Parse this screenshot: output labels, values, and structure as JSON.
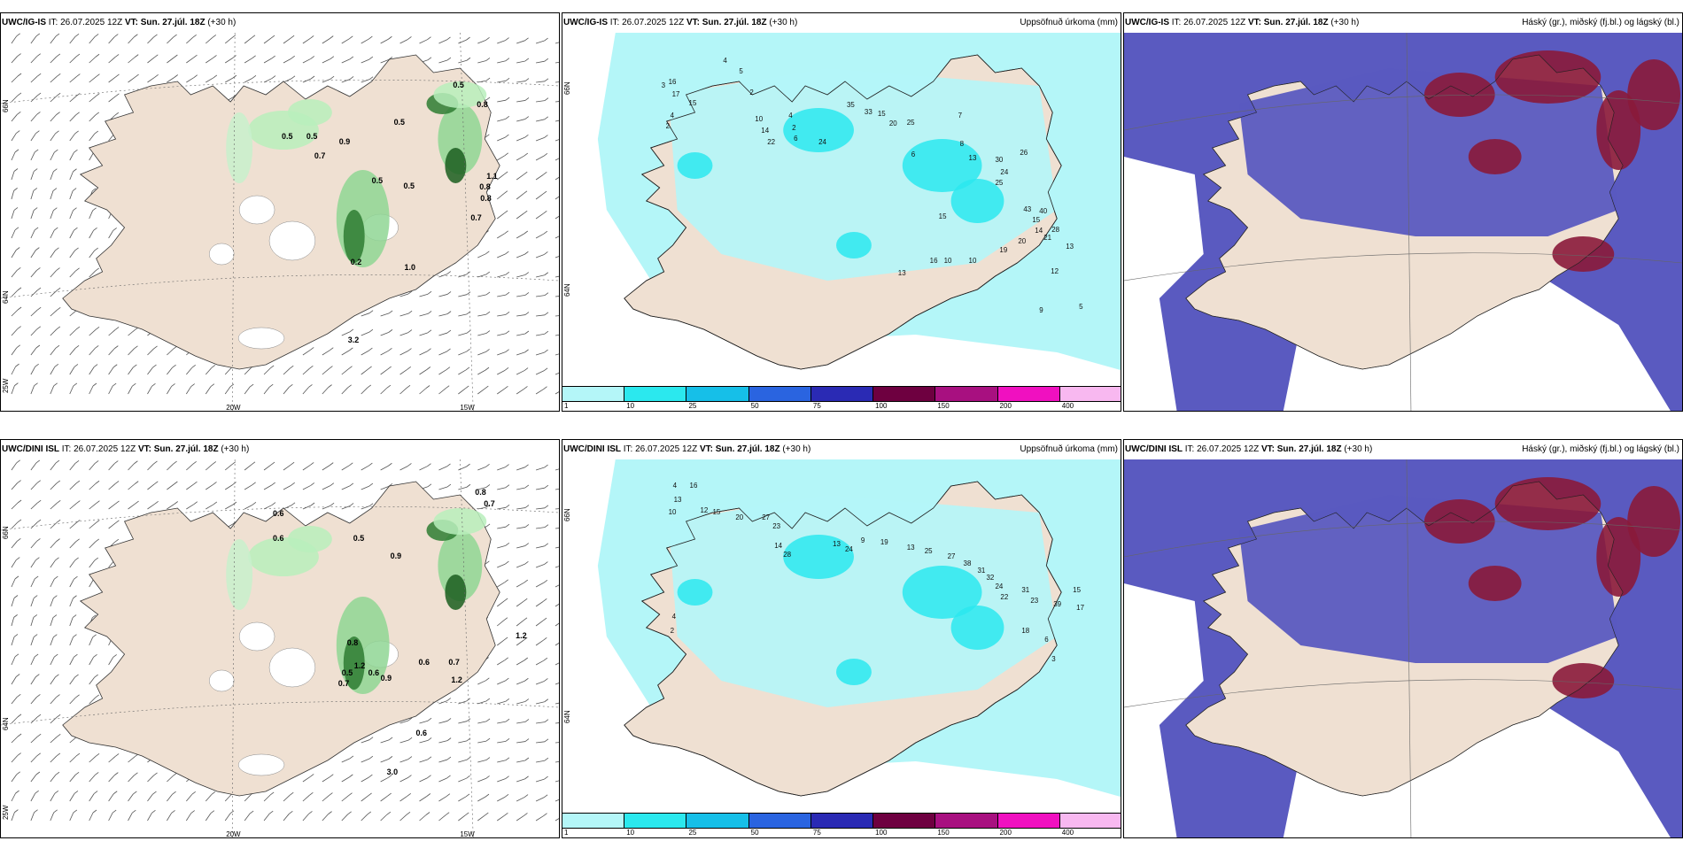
{
  "panels": [
    {
      "model": "UWC/IG-IS",
      "it_label": "IT:",
      "it": "26.07.2025 12Z",
      "vt_label": "VT:",
      "vt": "Sun. 27.júl. 18Z",
      "lead": "(+30 h)",
      "type": "wind",
      "right_title": "",
      "axis": {
        "lat1": "66N",
        "lat2": "64N",
        "lon0": "25W",
        "lon1": "20W",
        "lon2": "15W"
      },
      "values": [
        "0.5",
        "0.8",
        "0.5",
        "0.5",
        "0.5",
        "0.9",
        "0.7",
        "0.5",
        "0.5",
        "1.1",
        "0.8",
        "0.8",
        "0.7",
        "1.0",
        "0.2",
        "3.2"
      ]
    },
    {
      "model": "UWC/IG-IS",
      "it_label": "IT:",
      "it": "26.07.2025 12Z",
      "vt_label": "VT:",
      "vt": "Sun. 27.júl. 18Z",
      "lead": "(+30 h)",
      "type": "precip",
      "right_title": "Uppsöfnuð úrkoma (mm)",
      "axis": {
        "lat1": "66N",
        "lat2": "64N"
      },
      "values": [
        "4",
        "5",
        "3",
        "2",
        "16",
        "17",
        "15",
        "4",
        "2",
        "10",
        "14",
        "4",
        "2",
        "6",
        "22",
        "24",
        "35",
        "33",
        "15",
        "20",
        "25",
        "6",
        "7",
        "8",
        "13",
        "30",
        "24",
        "26",
        "25",
        "43",
        "40",
        "15",
        "14",
        "21",
        "20",
        "28",
        "10",
        "10",
        "13",
        "16",
        "15",
        "19",
        "12",
        "13",
        "9",
        "5"
      ]
    },
    {
      "model": "UWC/IG-IS",
      "it_label": "IT:",
      "it": "26.07.2025 12Z",
      "vt_label": "VT:",
      "vt": "Sun. 27.júl. 18Z",
      "lead": "(+30 h)",
      "type": "cloud",
      "right_title": "Háský (gr.), miðský (fj.bl.) og lágský (bl.)"
    },
    {
      "model": "UWC/DINI ISL",
      "it_label": "IT:",
      "it": "26.07.2025 12Z",
      "vt_label": "VT:",
      "vt": "Sun. 27.júl. 18Z",
      "lead": "(+30 h)",
      "type": "wind",
      "right_title": "",
      "axis": {
        "lat1": "66N",
        "lat2": "64N",
        "lon0": "25W",
        "lon1": "20W",
        "lon2": "15W"
      },
      "values": [
        "0.6",
        "0.8",
        "0.7",
        "0.6",
        "0.5",
        "0.9",
        "0.8",
        "1.2",
        "0.6",
        "0.7",
        "0.6",
        "0.5",
        "0.7",
        "1.2",
        "0.9",
        "1.2",
        "0.6",
        "3.0"
      ]
    },
    {
      "model": "UWC/DINI ISL",
      "it_label": "IT:",
      "it": "26.07.2025 12Z",
      "vt_label": "VT:",
      "vt": "Sun. 27.júl. 18Z",
      "lead": "(+30 h)",
      "type": "precip",
      "right_title": "Uppsöfnuð úrkoma (mm)",
      "axis": {
        "lat1": "66N",
        "lat2": "64N"
      },
      "values": [
        "4",
        "16",
        "13",
        "10",
        "12",
        "15",
        "20",
        "27",
        "23",
        "14",
        "28",
        "13",
        "24",
        "9",
        "19",
        "13",
        "25",
        "27",
        "38",
        "31",
        "32",
        "24",
        "22",
        "31",
        "23",
        "39",
        "15",
        "17",
        "18",
        "6",
        "3",
        "4",
        "2"
      ]
    },
    {
      "model": "UWC/DINI ISL",
      "it_label": "IT:",
      "it": "26.07.2025 12Z",
      "vt_label": "VT:",
      "vt": "Sun. 27.júl. 18Z",
      "lead": "(+30 h)",
      "type": "cloud",
      "right_title": "Háský (gr.), miðský (fj.bl.) og lágský (bl.)"
    }
  ],
  "colorbar": {
    "colors": [
      "#b4f6f8",
      "#2be8ee",
      "#16bfe8",
      "#2a64e0",
      "#2a2ab4",
      "#6e0040",
      "#a81080",
      "#f010c0",
      "#f8b8f0"
    ],
    "ticks": [
      "1",
      "10",
      "25",
      "50",
      "75",
      "100",
      "150",
      "200",
      "400"
    ]
  },
  "colors": {
    "land": "#efe0d2",
    "sea": "#ffffff",
    "cloud_low": "#5a5ac0",
    "cloud_high": "#8a1a3a",
    "precip": "#b4f6f8"
  }
}
